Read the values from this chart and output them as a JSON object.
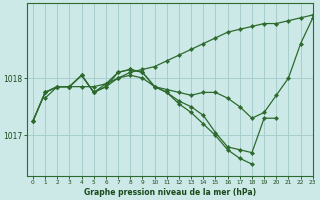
{
  "title": "Graphe pression niveau de la mer (hPa)",
  "background_color": "#cce9e8",
  "line_color": "#2d6a2d",
  "grid_color": "#a8cece",
  "text_color": "#1a4a1a",
  "xlim": [
    -0.5,
    23
  ],
  "ylim": [
    1016.3,
    1019.3
  ],
  "yticks": [
    1017,
    1018
  ],
  "xticks": [
    0,
    1,
    2,
    3,
    4,
    5,
    6,
    7,
    8,
    9,
    10,
    11,
    12,
    13,
    14,
    15,
    16,
    17,
    18,
    19,
    20,
    21,
    22,
    23
  ],
  "series": [
    [
      null,
      1017.65,
      1017.85,
      1017.85,
      1017.85,
      1017.85,
      1017.9,
      1018.0,
      1018.1,
      1018.15,
      1018.2,
      1018.3,
      1018.4,
      1018.5,
      1018.6,
      1018.7,
      1018.8,
      1018.85,
      1018.9,
      1018.95,
      1018.95,
      1019.0,
      1019.05,
      1019.1
    ],
    [
      1017.25,
      1017.75,
      1017.85,
      1017.85,
      1018.05,
      1017.75,
      1017.85,
      1018.0,
      1018.05,
      1018.0,
      1017.85,
      1017.8,
      1017.75,
      1017.7,
      1017.75,
      1017.75,
      1017.65,
      1017.5,
      1017.3,
      1017.4,
      1017.7,
      1018.0,
      1018.6,
      1019.05
    ],
    [
      1017.25,
      1017.75,
      1017.85,
      1017.85,
      1018.05,
      1017.75,
      1017.85,
      1018.1,
      1018.15,
      1018.1,
      1017.85,
      1017.75,
      1017.6,
      1017.5,
      1017.35,
      1017.05,
      1016.8,
      1016.75,
      1016.7,
      1017.3,
      1017.3,
      null,
      null,
      null
    ],
    [
      1017.25,
      1017.75,
      1017.85,
      1017.85,
      1018.05,
      1017.75,
      1017.9,
      1018.1,
      1018.15,
      1018.1,
      1017.85,
      1017.75,
      1017.55,
      1017.4,
      1017.2,
      1017.0,
      1016.75,
      1016.6,
      1016.5,
      null,
      null,
      null,
      null,
      null
    ]
  ]
}
